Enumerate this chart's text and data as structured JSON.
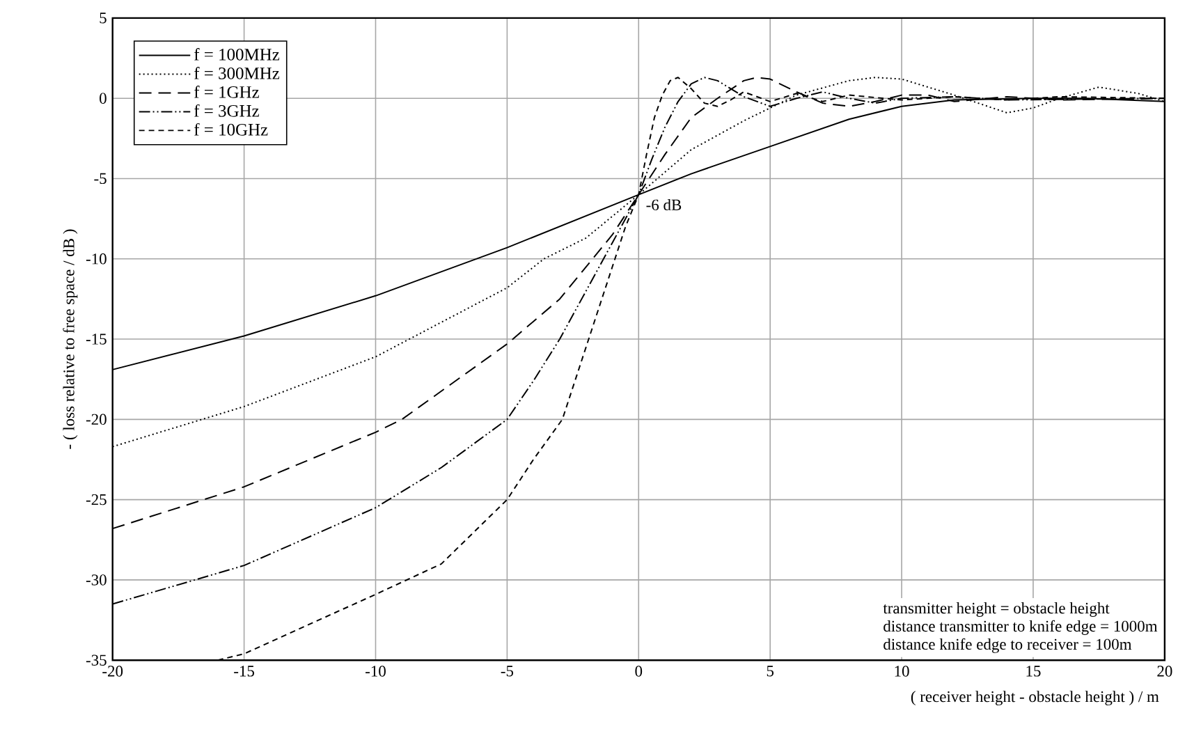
{
  "chart_data": {
    "type": "line",
    "xlabel": "( receiver height - obstacle height ) / m",
    "ylabel": "- ( loss relative to free space / dB )",
    "xlim": [
      -20,
      20
    ],
    "ylim": [
      -35,
      5
    ],
    "xticks": [
      -20,
      -15,
      -10,
      -5,
      0,
      5,
      10,
      15,
      20
    ],
    "yticks": [
      -35,
      -30,
      -25,
      -20,
      -15,
      -10,
      -5,
      0,
      5
    ],
    "grid": true,
    "legend": "top left",
    "annotations": [
      {
        "text": "-6 dB",
        "x": 0,
        "y": -6
      },
      "transmitter height = obstacle height",
      "distance transmitter to knife edge = 1000m",
      "distance knife edge to receiver = 100m"
    ],
    "series": [
      {
        "name": "f = 100MHz",
        "color": "#000000",
        "line_style": "solid",
        "x": [
          -20,
          -15,
          -10,
          -5,
          0,
          2,
          5,
          8,
          10,
          12,
          15,
          17,
          20
        ],
        "values": [
          -16.9,
          -14.8,
          -12.3,
          -9.3,
          -6,
          -4.7,
          -3,
          -1.3,
          -0.5,
          -0.1,
          0,
          0,
          -0.2
        ]
      },
      {
        "name": "f = 300MHz",
        "color": "#000000",
        "line_style": "dotted",
        "x": [
          -20,
          -15,
          -10,
          -5,
          -3.6,
          -2,
          0,
          1,
          2,
          4,
          6,
          8,
          9,
          10,
          12,
          14,
          15,
          16,
          17.5,
          19,
          20
        ],
        "values": [
          -21.7,
          -19.2,
          -16.1,
          -11.8,
          -10,
          -8.7,
          -6,
          -4.6,
          -3.2,
          -1.4,
          0.2,
          1.1,
          1.3,
          1.2,
          0.2,
          -0.9,
          -0.6,
          0,
          0.7,
          0.3,
          -0.2
        ]
      },
      {
        "name": "f = 1GHz",
        "color": "#000000",
        "line_style": "dashed",
        "x": [
          -20,
          -15,
          -10,
          -9,
          -5,
          -3,
          -2,
          -1,
          0,
          1,
          2,
          3,
          4,
          4.5,
          5,
          6,
          7,
          8,
          9,
          10,
          11,
          12,
          14,
          16,
          20
        ],
        "values": [
          -26.8,
          -24.2,
          -20.8,
          -20,
          -15.3,
          -12.5,
          -10.5,
          -8.5,
          -6,
          -3.5,
          -1.2,
          0,
          1.1,
          1.3,
          1.2,
          0.4,
          -0.3,
          -0.5,
          -0.2,
          0.2,
          0.2,
          -0.2,
          0.1,
          -0.1,
          0
        ]
      },
      {
        "name": "f = 3GHz",
        "color": "#000000",
        "line_style": "dashdotdot",
        "x": [
          -20,
          -15,
          -10,
          -7.5,
          -5,
          -4,
          -3,
          -2,
          -1,
          0,
          0.5,
          1,
          1.5,
          2,
          2.5,
          3,
          4,
          5,
          6,
          7,
          8,
          9,
          10,
          12,
          14,
          20
        ],
        "values": [
          -31.5,
          -29.1,
          -25.5,
          -23,
          -20,
          -17.6,
          -15,
          -12,
          -9,
          -6,
          -3.8,
          -1.8,
          -0.2,
          0.9,
          1.3,
          1.1,
          0.1,
          -0.5,
          0,
          0.4,
          0,
          -0.3,
          0,
          0.1,
          -0.1,
          0
        ]
      },
      {
        "name": "f = 10GHz",
        "color": "#000000",
        "line_style": "densely dashed",
        "x": [
          -16,
          -15,
          -10,
          -7.5,
          -5,
          -4,
          -2.9,
          -2,
          -1.5,
          -1,
          -0.5,
          0,
          0.3,
          0.6,
          0.9,
          1.2,
          1.5,
          2,
          2.5,
          3,
          3.5,
          4,
          5,
          6,
          7,
          8,
          10,
          12,
          14,
          16,
          20
        ],
        "values": [
          -35,
          -34.6,
          -30.9,
          -29,
          -25,
          -22.5,
          -20,
          -15.5,
          -13,
          -10.5,
          -8,
          -6,
          -3.5,
          -1.2,
          0.2,
          1.1,
          1.3,
          0.6,
          -0.3,
          -0.5,
          -0.1,
          0.4,
          -0.2,
          0.3,
          -0.2,
          0.2,
          -0.1,
          0.1,
          -0.1,
          0.1,
          0
        ]
      }
    ]
  }
}
